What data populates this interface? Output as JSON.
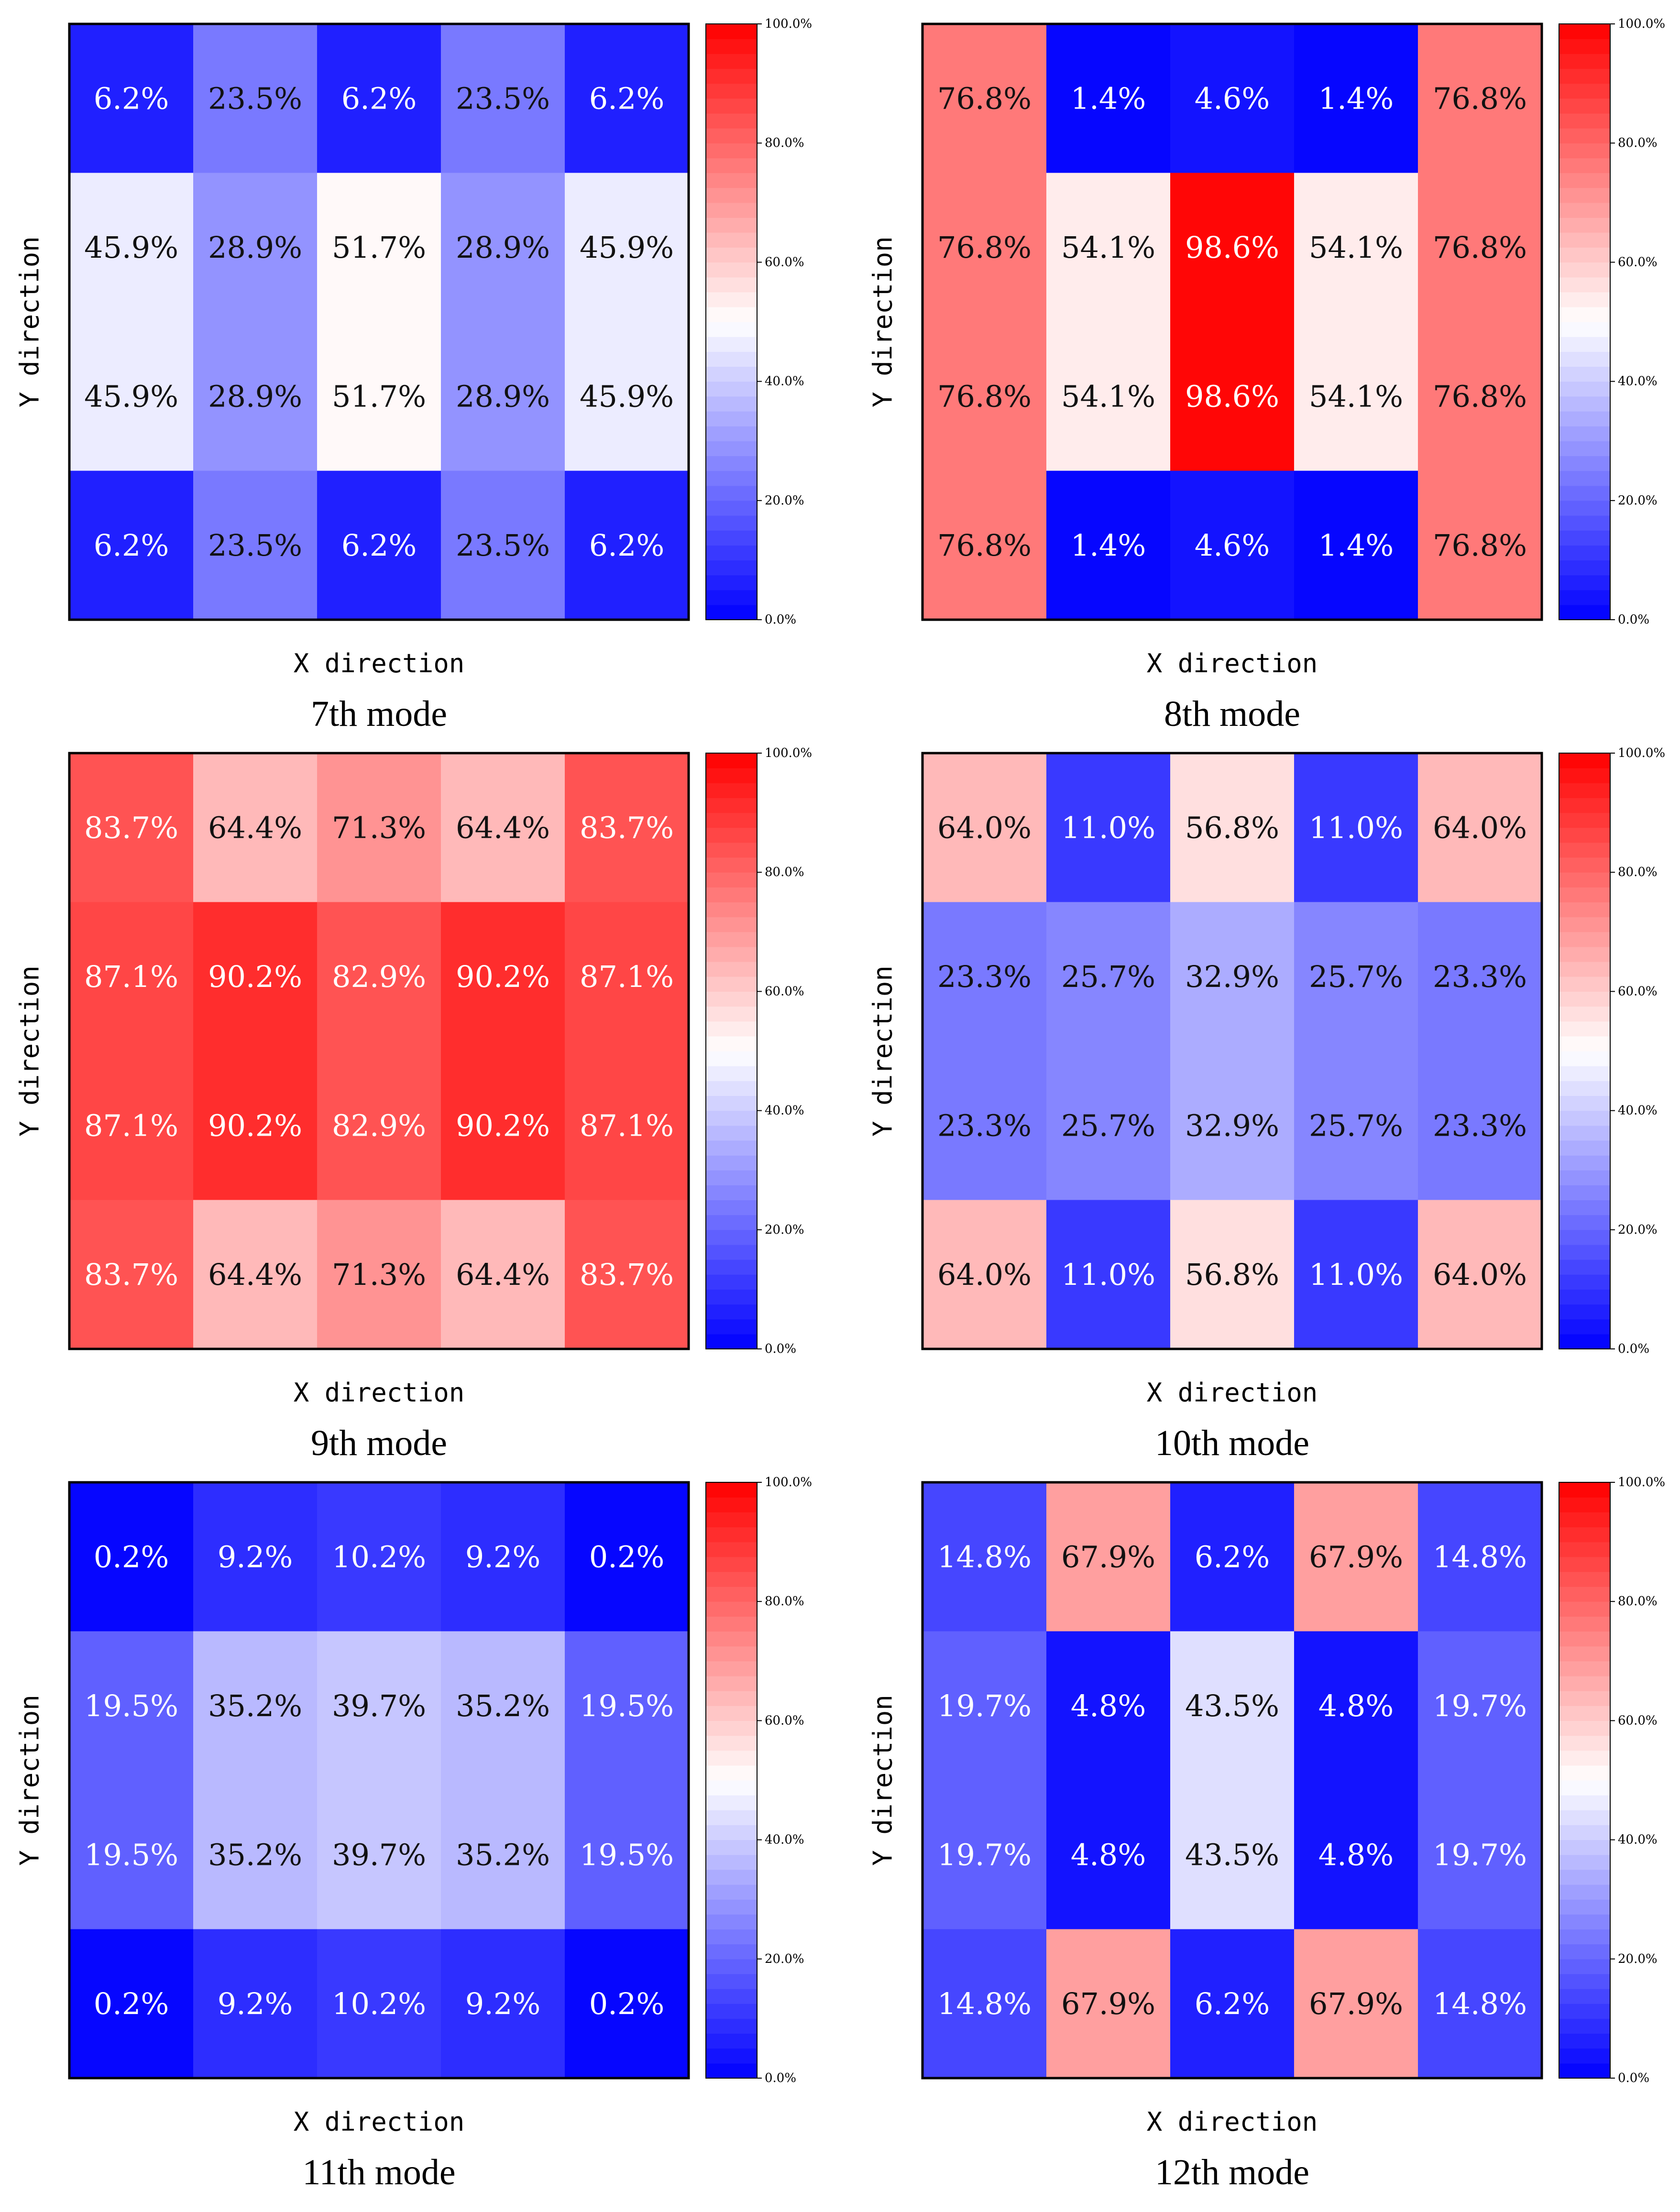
{
  "chart_data": [
    {
      "type": "heatmap",
      "title": "7th mode",
      "xlabel": "X direction",
      "ylabel": "Y direction",
      "rows": [
        [
          "6.2%",
          "23.5%",
          "6.2%",
          "23.5%",
          "6.2%"
        ],
        [
          "45.9%",
          "28.9%",
          "51.7%",
          "28.9%",
          "45.9%"
        ],
        [
          "45.9%",
          "28.9%",
          "51.7%",
          "28.9%",
          "45.9%"
        ],
        [
          "6.2%",
          "23.5%",
          "6.2%",
          "23.5%",
          "6.2%"
        ]
      ],
      "colorbar": {
        "range": [
          0,
          100
        ],
        "ticks": [
          "0.0%",
          "20.0%",
          "40.0%",
          "60.0%",
          "80.0%",
          "100.0%"
        ]
      }
    },
    {
      "type": "heatmap",
      "title": "8th mode",
      "xlabel": "X direction",
      "ylabel": "Y direction",
      "rows": [
        [
          "76.8%",
          "1.4%",
          "4.6%",
          "1.4%",
          "76.8%"
        ],
        [
          "76.8%",
          "54.1%",
          "98.6%",
          "54.1%",
          "76.8%"
        ],
        [
          "76.8%",
          "54.1%",
          "98.6%",
          "54.1%",
          "76.8%"
        ],
        [
          "76.8%",
          "1.4%",
          "4.6%",
          "1.4%",
          "76.8%"
        ]
      ],
      "colorbar": {
        "range": [
          0,
          100
        ],
        "ticks": [
          "0.0%",
          "20.0%",
          "40.0%",
          "60.0%",
          "80.0%",
          "100.0%"
        ]
      }
    },
    {
      "type": "heatmap",
      "title": "9th mode",
      "xlabel": "X direction",
      "ylabel": "Y direction",
      "rows": [
        [
          "83.7%",
          "64.4%",
          "71.3%",
          "64.4%",
          "83.7%"
        ],
        [
          "87.1%",
          "90.2%",
          "82.9%",
          "90.2%",
          "87.1%"
        ],
        [
          "87.1%",
          "90.2%",
          "82.9%",
          "90.2%",
          "87.1%"
        ],
        [
          "83.7%",
          "64.4%",
          "71.3%",
          "64.4%",
          "83.7%"
        ]
      ],
      "colorbar": {
        "range": [
          0,
          100
        ],
        "ticks": [
          "0.0%",
          "20.0%",
          "40.0%",
          "60.0%",
          "80.0%",
          "100.0%"
        ]
      }
    },
    {
      "type": "heatmap",
      "title": "10th mode",
      "xlabel": "X direction",
      "ylabel": "Y direction",
      "rows": [
        [
          "64.0%",
          "11.0%",
          "56.8%",
          "11.0%",
          "64.0%"
        ],
        [
          "23.3%",
          "25.7%",
          "32.9%",
          "25.7%",
          "23.3%"
        ],
        [
          "23.3%",
          "25.7%",
          "32.9%",
          "25.7%",
          "23.3%"
        ],
        [
          "64.0%",
          "11.0%",
          "56.8%",
          "11.0%",
          "64.0%"
        ]
      ],
      "colorbar": {
        "range": [
          0,
          100
        ],
        "ticks": [
          "0.0%",
          "20.0%",
          "40.0%",
          "60.0%",
          "80.0%",
          "100.0%"
        ]
      }
    },
    {
      "type": "heatmap",
      "title": "11th mode",
      "xlabel": "X direction",
      "ylabel": "Y direction",
      "rows": [
        [
          "0.2%",
          "9.2%",
          "10.2%",
          "9.2%",
          "0.2%"
        ],
        [
          "19.5%",
          "35.2%",
          "39.7%",
          "35.2%",
          "19.5%"
        ],
        [
          "19.5%",
          "35.2%",
          "39.7%",
          "35.2%",
          "19.5%"
        ],
        [
          "0.2%",
          "9.2%",
          "10.2%",
          "9.2%",
          "0.2%"
        ]
      ],
      "colorbar": {
        "range": [
          0,
          100
        ],
        "ticks": [
          "0.0%",
          "20.0%",
          "40.0%",
          "60.0%",
          "80.0%",
          "100.0%"
        ]
      }
    },
    {
      "type": "heatmap",
      "title": "12th mode",
      "xlabel": "X direction",
      "ylabel": "Y direction",
      "rows": [
        [
          "14.8%",
          "67.9%",
          "6.2%",
          "67.9%",
          "14.8%"
        ],
        [
          "19.7%",
          "4.8%",
          "43.5%",
          "4.8%",
          "19.7%"
        ],
        [
          "19.7%",
          "4.8%",
          "43.5%",
          "4.8%",
          "19.7%"
        ],
        [
          "14.8%",
          "67.9%",
          "6.2%",
          "67.9%",
          "14.8%"
        ]
      ],
      "colorbar": {
        "range": [
          0,
          100
        ],
        "ticks": [
          "0.0%",
          "20.0%",
          "40.0%",
          "60.0%",
          "80.0%",
          "100.0%"
        ]
      }
    }
  ]
}
